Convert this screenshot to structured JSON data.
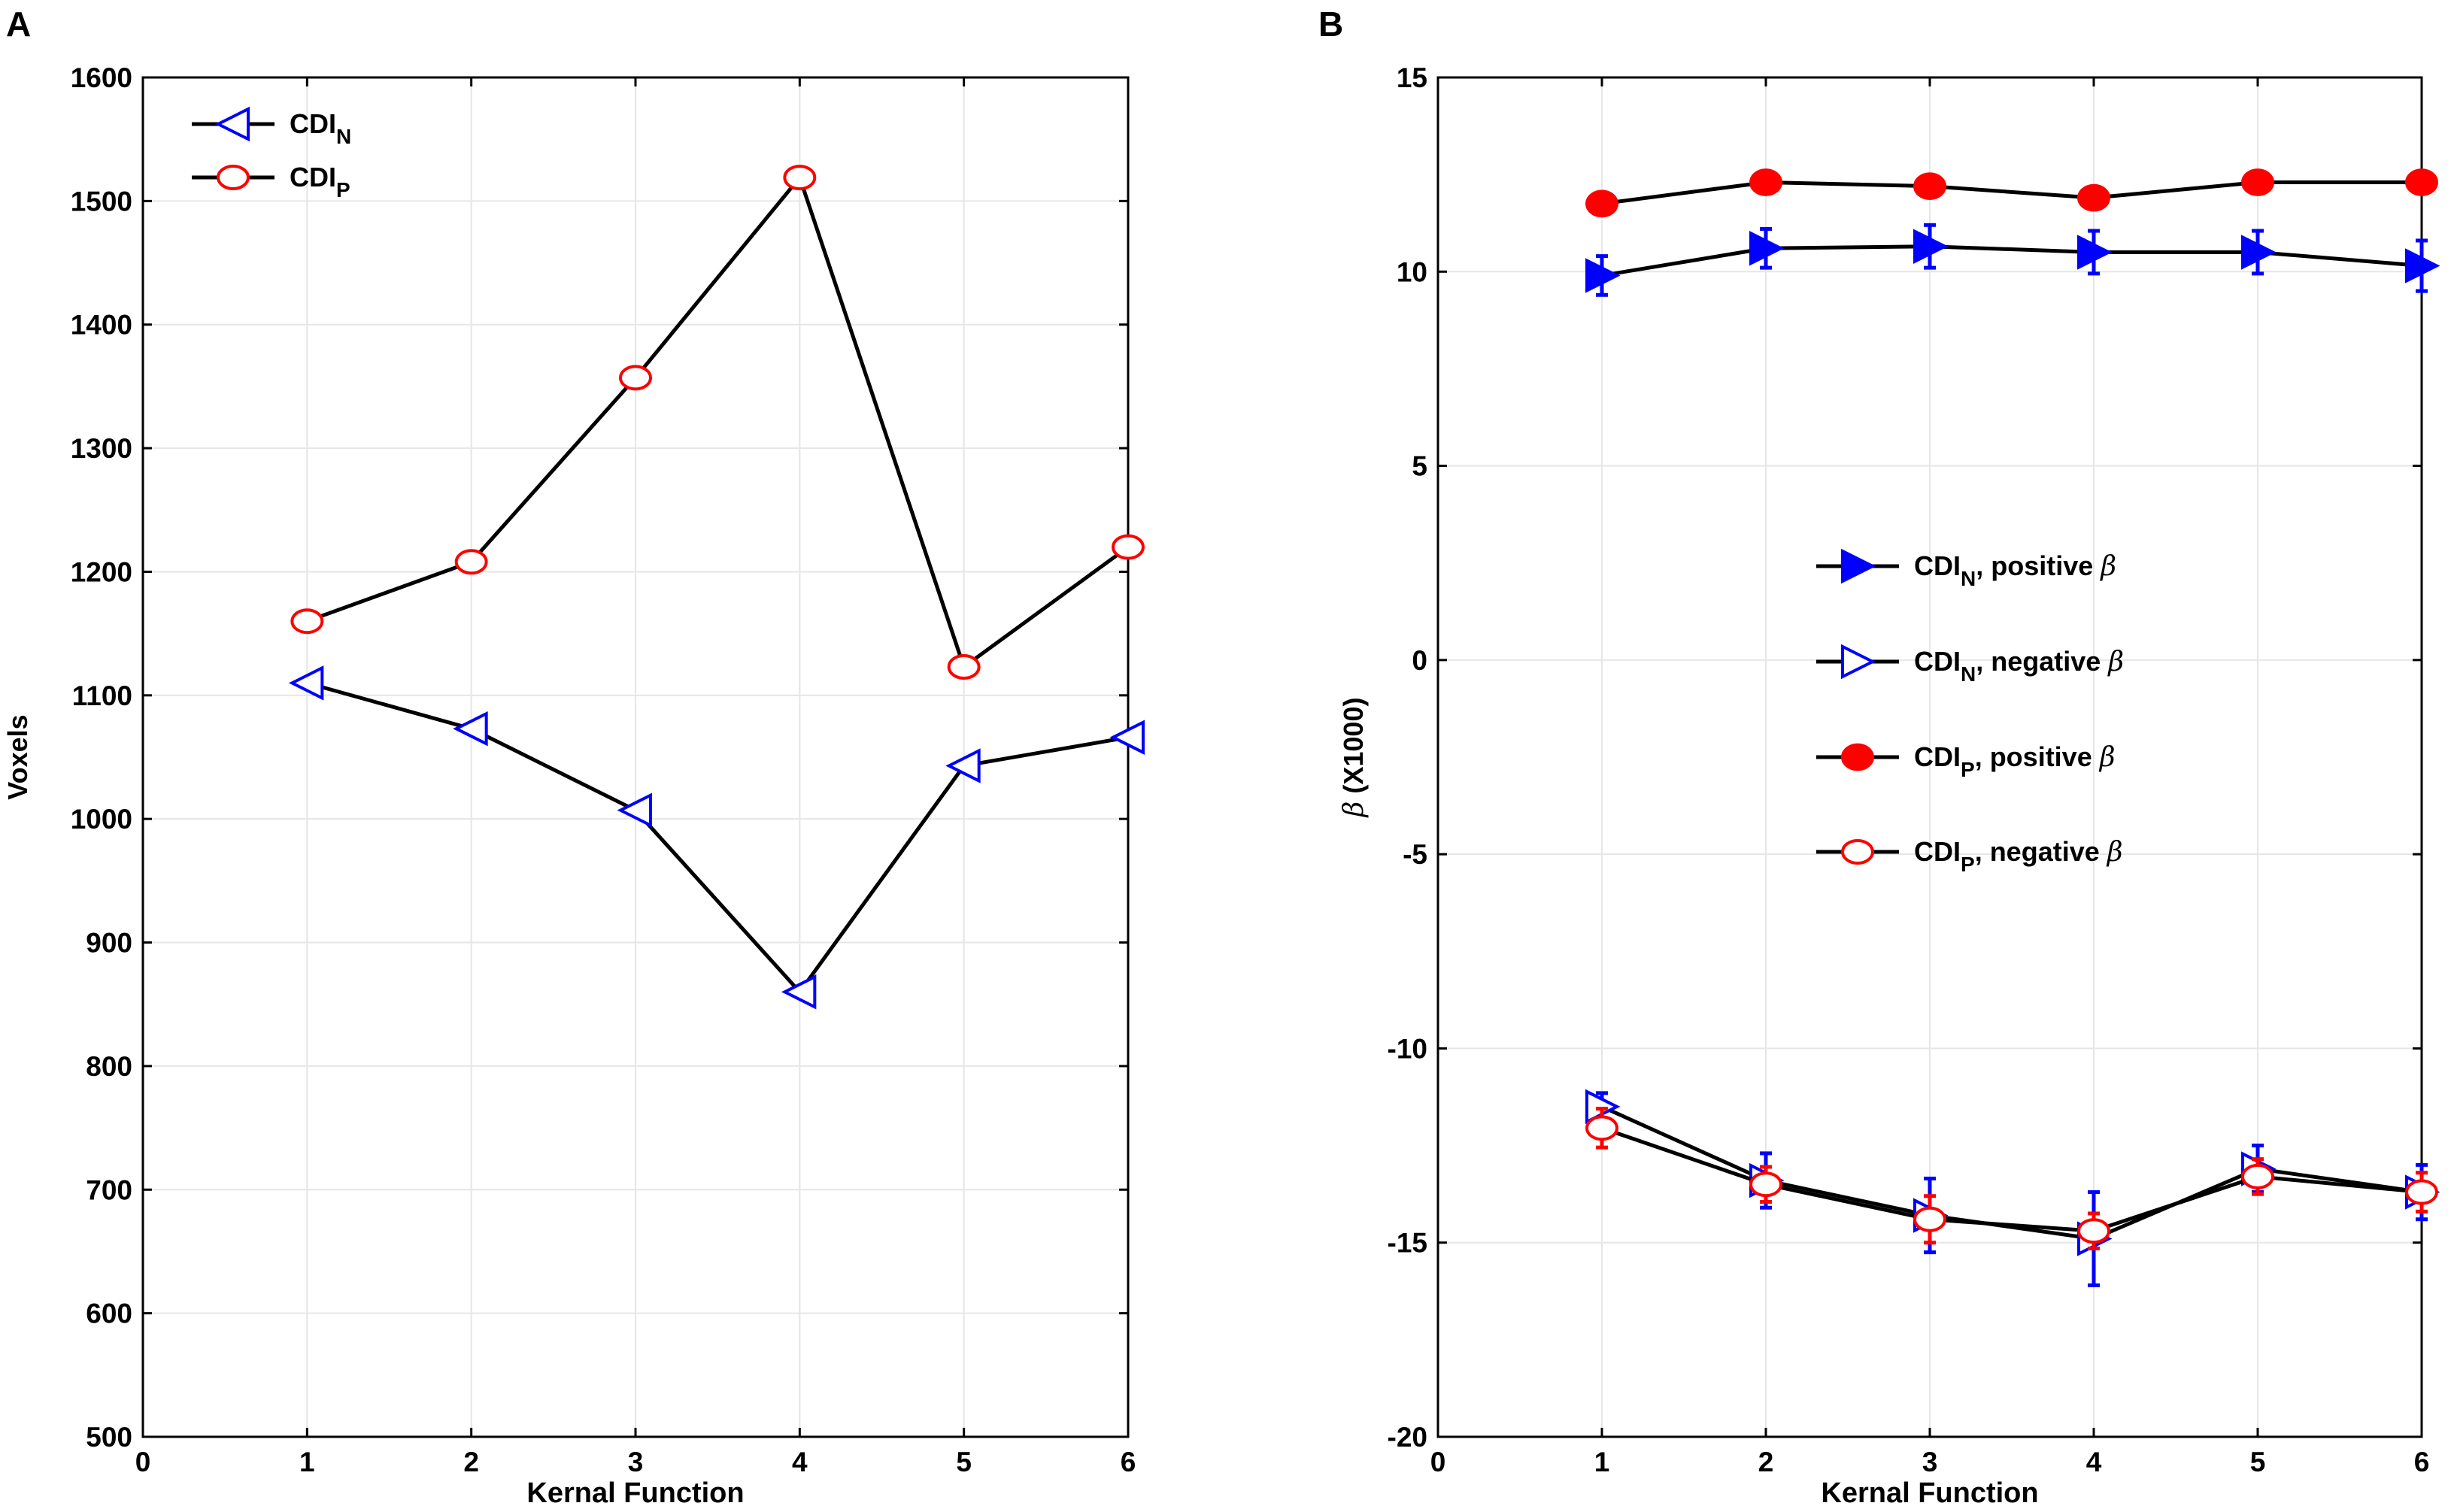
{
  "chart_data": [
    {
      "panel_label": "A",
      "type": "line",
      "title": "",
      "xlabel": "Kernal Function",
      "ylabel": "Voxels",
      "xlim": [
        0,
        6
      ],
      "ylim": [
        500,
        1600
      ],
      "xticks": [
        "0",
        "1",
        "2",
        "3",
        "4",
        "5",
        "6"
      ],
      "yticks": [
        "500",
        "600",
        "700",
        "800",
        "900",
        "1000",
        "1100",
        "1200",
        "1300",
        "1400",
        "1500",
        "1600"
      ],
      "grid": true,
      "legend_position": "top-left",
      "x": [
        1,
        2,
        3,
        4,
        5,
        6
      ],
      "series": [
        {
          "name": "CDI",
          "sub": "N",
          "marker": "triangle-left-open",
          "color": "#0000ff",
          "values": [
            1110,
            1073,
            1007,
            860,
            1043,
            1066
          ]
        },
        {
          "name": "CDI",
          "sub": "P",
          "marker": "circle-open",
          "color": "#ff0000",
          "values": [
            1160,
            1208,
            1357,
            1519,
            1123,
            1220
          ]
        }
      ]
    },
    {
      "panel_label": "B",
      "type": "line",
      "title": "",
      "xlabel": "Kernal Function",
      "ylabel_symbol": "β",
      "ylabel": " (X1000)",
      "xlim": [
        0,
        6
      ],
      "ylim": [
        -20,
        15
      ],
      "xticks": [
        "0",
        "1",
        "2",
        "3",
        "4",
        "5",
        "6"
      ],
      "yticks": [
        "-20",
        "-15",
        "-10",
        "-5",
        "0",
        "5",
        "10",
        "15"
      ],
      "grid": true,
      "legend_position": "center-right",
      "x": [
        1,
        2,
        3,
        4,
        5,
        6
      ],
      "series": [
        {
          "name": "CDI",
          "sub": "N",
          "suffix": ", positive ",
          "beta": "β",
          "marker": "triangle-right-filled",
          "color": "#0000ff",
          "values": [
            9.9,
            10.6,
            10.65,
            10.5,
            10.5,
            10.15
          ],
          "errors": [
            0.5,
            0.5,
            0.55,
            0.55,
            0.55,
            0.65
          ]
        },
        {
          "name": "CDI",
          "sub": "N",
          "suffix": ", negative ",
          "beta": "β",
          "marker": "triangle-right-open",
          "color": "#0000ff",
          "values": [
            -11.5,
            -13.4,
            -14.3,
            -14.9,
            -13.1,
            -13.7
          ],
          "errors": [
            0.35,
            0.7,
            0.95,
            1.2,
            0.6,
            0.7
          ]
        },
        {
          "name": "CDI",
          "sub": "P",
          "suffix": ", positive ",
          "beta": "β",
          "marker": "circle-filled",
          "color": "#ff0000",
          "values": [
            11.75,
            12.3,
            12.2,
            11.9,
            12.3,
            12.3
          ],
          "errors": [
            0.15,
            0.15,
            0.15,
            0.15,
            0.15,
            0.15
          ]
        },
        {
          "name": "CDI",
          "sub": "P",
          "suffix": ", negative ",
          "beta": "β",
          "marker": "circle-open",
          "color": "#ff0000",
          "values": [
            -12.05,
            -13.5,
            -14.4,
            -14.7,
            -13.3,
            -13.7
          ],
          "errors": [
            0.5,
            0.45,
            0.6,
            0.45,
            0.45,
            0.5
          ]
        }
      ]
    }
  ]
}
